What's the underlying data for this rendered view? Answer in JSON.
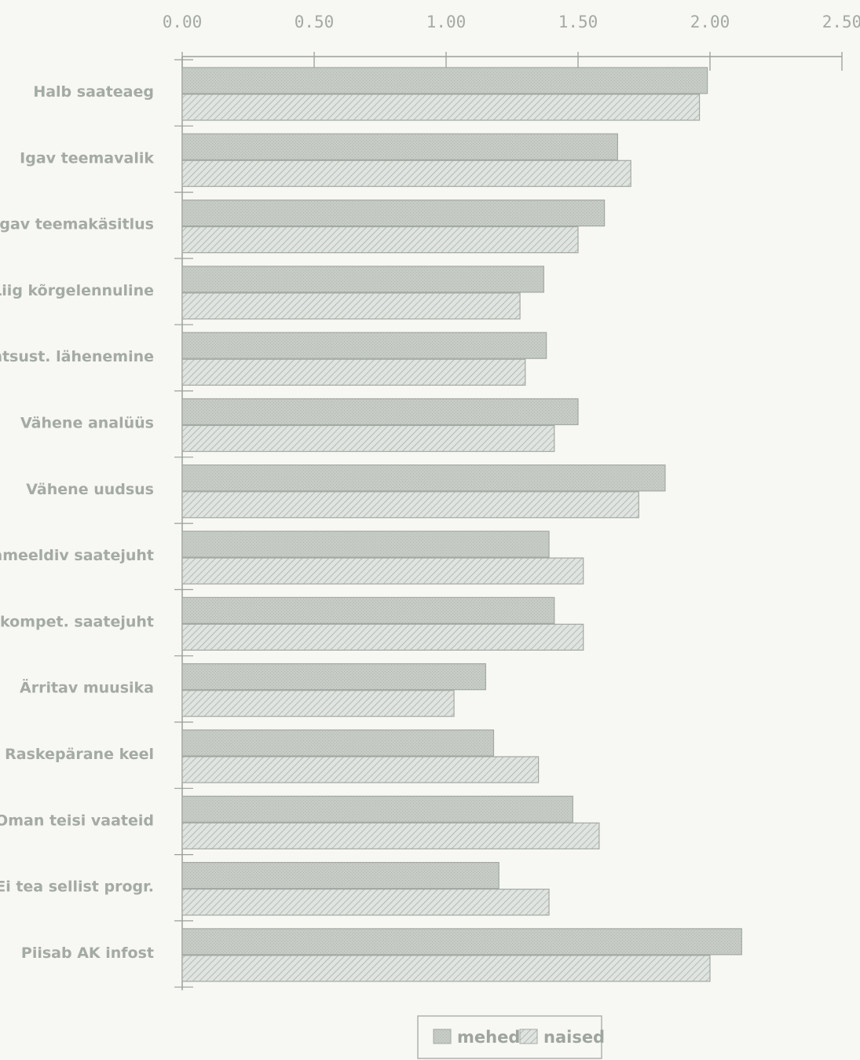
{
  "chart_data": {
    "type": "bar",
    "orientation": "horizontal",
    "categories": [
      "Halb saateaeg",
      "Igav teemavalik",
      "Igav teemakäsitlus",
      "Liig kõrgelennuline",
      "Lihtsust. lähenemine",
      "Vähene analüüs",
      "Vähene uudsus",
      "Ebameeldiv saatejuht",
      "Ebakompet. saatejuht",
      "Ärritav muusika",
      "Raskepärane keel",
      "Oman teisi vaateid",
      "Ei tea sellist progr.",
      "Piisab AK infost"
    ],
    "series": [
      {
        "name": "mehed",
        "values": [
          1.99,
          1.65,
          1.6,
          1.37,
          1.38,
          1.5,
          1.83,
          1.39,
          1.41,
          1.15,
          1.18,
          1.48,
          1.2,
          2.12
        ]
      },
      {
        "name": "naised",
        "values": [
          1.96,
          1.7,
          1.5,
          1.28,
          1.3,
          1.41,
          1.73,
          1.52,
          1.52,
          1.03,
          1.35,
          1.58,
          1.39,
          2.0
        ]
      }
    ],
    "x_ticks": [
      "0.00",
      "0.50",
      "1.00",
      "1.50",
      "2.00",
      "2.50"
    ],
    "xlim": [
      0,
      2.5
    ],
    "x_axis_position": "top",
    "grid": false,
    "legend_position": "bottom-center",
    "colors": {
      "mehed": "#c4c9c4",
      "naised": "#dfe3df",
      "hatch": "#aab0aa",
      "axis": "#9aa09a",
      "text": "#a4aaa4"
    }
  }
}
